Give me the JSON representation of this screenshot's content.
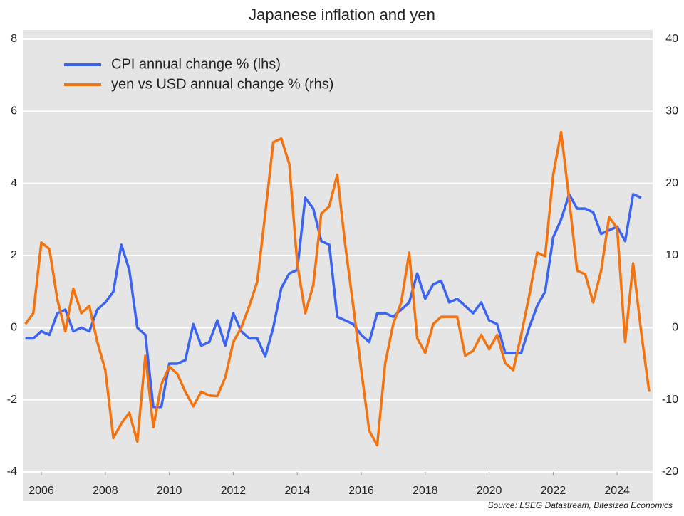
{
  "chart_data": {
    "type": "line",
    "title": "Japanese inflation and yen",
    "source": "Source: LSEG Datastream, Bitesized Economics",
    "x": [
      2005.5,
      2005.75,
      2006,
      2006.25,
      2006.5,
      2006.75,
      2007,
      2007.25,
      2007.5,
      2007.75,
      2008,
      2008.25,
      2008.5,
      2008.75,
      2009,
      2009.25,
      2009.5,
      2009.75,
      2010,
      2010.25,
      2010.5,
      2010.75,
      2011,
      2011.25,
      2011.5,
      2011.75,
      2012,
      2012.25,
      2012.5,
      2012.75,
      2013,
      2013.25,
      2013.5,
      2013.75,
      2014,
      2014.25,
      2014.5,
      2014.75,
      2015,
      2015.25,
      2015.5,
      2015.75,
      2016,
      2016.25,
      2016.5,
      2016.75,
      2017,
      2017.25,
      2017.5,
      2017.75,
      2018,
      2018.25,
      2018.5,
      2018.75,
      2019,
      2019.25,
      2019.5,
      2019.75,
      2020,
      2020.25,
      2020.5,
      2020.75,
      2021,
      2021.25,
      2021.5,
      2021.75,
      2022,
      2022.25,
      2022.5,
      2022.75,
      2023,
      2023.25,
      2023.5,
      2023.75,
      2024,
      2024.25,
      2024.5,
      2024.75,
      2025
    ],
    "series": [
      {
        "name": "CPI annual change % (lhs)",
        "color": "#3b63f4",
        "axis": "y",
        "values": [
          -0.3,
          -0.3,
          -0.1,
          -0.2,
          0.4,
          0.5,
          -0.1,
          0,
          -0.1,
          0.5,
          0.7,
          1,
          2.3,
          1.6,
          0,
          -0.2,
          -2.2,
          -2.2,
          -1,
          -1,
          -0.9,
          0.1,
          -0.5,
          -0.4,
          0.2,
          -0.5,
          0.4,
          -0.1,
          -0.3,
          -0.3,
          -0.8,
          0,
          1.1,
          1.5,
          1.6,
          3.6,
          3.3,
          2.4,
          2.3,
          0.3,
          0.2,
          0.1,
          -0.2,
          -0.4,
          0.4,
          0.4,
          0.3,
          0.5,
          0.7,
          1.5,
          0.8,
          1.2,
          1.3,
          0.7,
          0.8,
          0.6,
          0.4,
          0.7,
          0.2,
          0.1,
          -0.7,
          -0.7,
          -0.7,
          0,
          0.6,
          1,
          2.5,
          3,
          3.7,
          3.3,
          3.3,
          3.2,
          2.6,
          2.7,
          2.8,
          2.4,
          3.7,
          3.6,
          null
        ]
      },
      {
        "name": "yen vs USD annual change % (rhs)",
        "color": "#f5730f",
        "axis": "y2",
        "values": [
          0.5,
          2,
          11.8,
          10.9,
          3.9,
          -0.5,
          5.4,
          2,
          3,
          -2,
          -5.9,
          -15.3,
          -13.3,
          -11.8,
          -15.8,
          -3.9,
          -13.8,
          -7.9,
          -5.4,
          -6.4,
          -8.9,
          -10.9,
          -8.9,
          -9.4,
          -9.5,
          -6.9,
          -2,
          0,
          3,
          6.4,
          15.8,
          25.7,
          26.2,
          22.7,
          8.9,
          2,
          5.9,
          15.8,
          16.8,
          21.2,
          11.4,
          3,
          -5.9,
          -14.3,
          -16.3,
          -4.9,
          0.5,
          3.5,
          10.4,
          -1.5,
          -3.5,
          0.5,
          1.5,
          1.5,
          1.5,
          -3.9,
          -3.2,
          -1,
          -3,
          -1,
          -4.9,
          -5.9,
          -1,
          4.4,
          10.4,
          9.9,
          21.2,
          27.1,
          17.8,
          7.9,
          7.4,
          3.5,
          7.9,
          15.3,
          13.8,
          -2,
          8.9,
          -0.5,
          -8.9
        ]
      }
    ],
    "xlim": [
      2005.42,
      2025.11
    ],
    "xticks": [
      2006,
      2008,
      2010,
      2012,
      2014,
      2016,
      2018,
      2020,
      2022,
      2024
    ],
    "ylim": [
      -4,
      8
    ],
    "yticks": [
      -4,
      -2,
      0,
      2,
      4,
      6,
      8
    ],
    "y2lim": [
      -20,
      40
    ],
    "y2ticks": [
      -20,
      -10,
      0,
      10,
      20,
      30,
      40
    ],
    "grid": true,
    "legend": "top-left"
  }
}
